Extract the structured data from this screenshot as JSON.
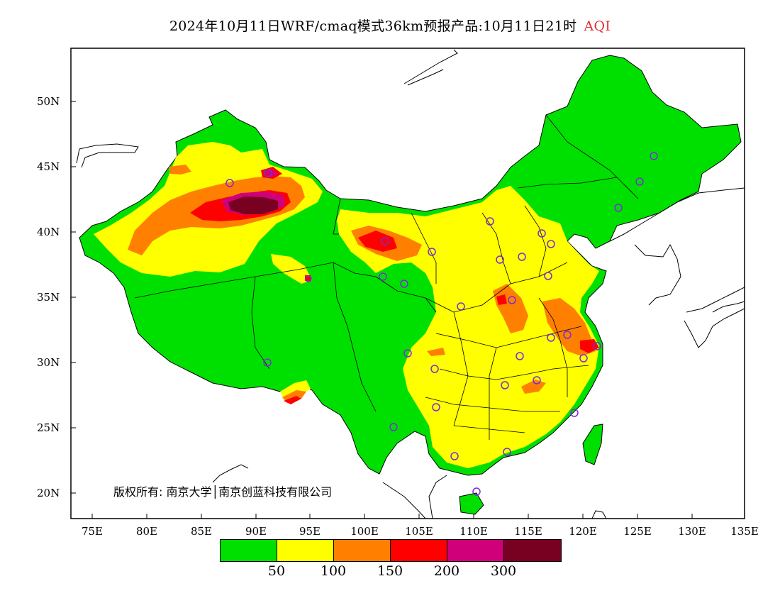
{
  "title": {
    "text": "2024年10月11日WRF/cmaq模式36km预报产品:10月11日21时",
    "variable": "AQI",
    "variable_color": "#e03030"
  },
  "axes": {
    "lat_labels": [
      "50N",
      "45N",
      "40N",
      "35N",
      "30N",
      "25N",
      "20N"
    ],
    "lon_labels": [
      "75E",
      "80E",
      "85E",
      "90E",
      "95E",
      "100E",
      "105E",
      "110E",
      "115E",
      "120E",
      "125E",
      "130E",
      "135E"
    ]
  },
  "copyright": "版权所有: 南京大学│南京创蓝科技有限公司",
  "legend": {
    "colors": [
      "#00e000",
      "#ffff00",
      "#ff8000",
      "#ff0000",
      "#d0007a",
      "#780020"
    ],
    "labels": [
      "50",
      "100",
      "150",
      "200",
      "300"
    ]
  },
  "map_colors": {
    "good": "#00e000",
    "moderate": "#ffff00",
    "usg": "#ff8000",
    "unhealthy": "#ff0000",
    "very_unhealthy": "#d0007a",
    "hazardous": "#780020",
    "station_marker": "#7b2bd8"
  }
}
